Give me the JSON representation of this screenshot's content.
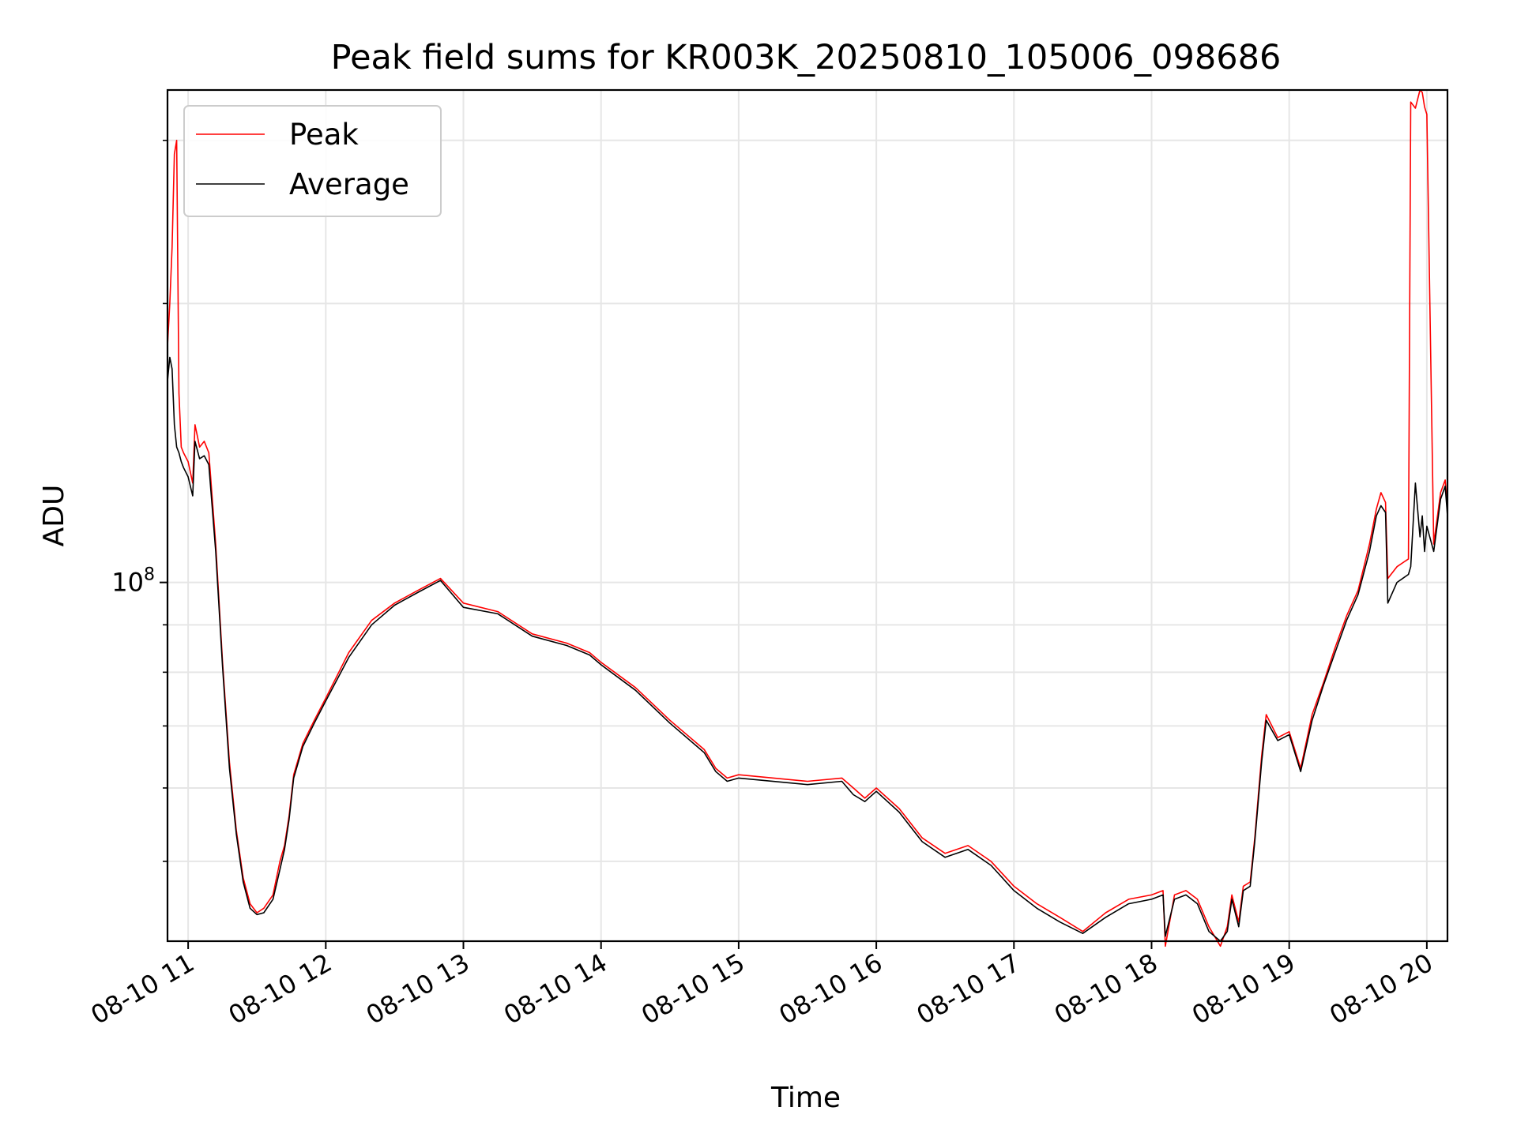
{
  "chart_data": {
    "type": "line",
    "title": "Peak field sums for KR003K_20250810_105006_098686",
    "xlabel": "Time",
    "ylabel": "ADU",
    "y_scale": "log",
    "x_tick_labels": [
      "08-10 11",
      "08-10 12",
      "08-10 13",
      "08-10 14",
      "08-10 15",
      "08-10 16",
      "08-10 17",
      "08-10 18",
      "08-10 19",
      "08-10 20"
    ],
    "y_tick_labels": [
      {
        "base": "10",
        "exponent": "8",
        "value": 100000000
      }
    ],
    "xlim": [
      "2025-08-10 10:51",
      "2025-08-10 20:09"
    ],
    "ylim": [
      41000000,
      340000000
    ],
    "grid": true,
    "legend_position": "upper-left",
    "series": [
      {
        "name": "Peak",
        "color": "#ff0000",
        "x": [
          "2025-08-10 10:51",
          "2025-08-10 10:52",
          "2025-08-10 10:53",
          "2025-08-10 10:54",
          "2025-08-10 10:55",
          "2025-08-10 10:56",
          "2025-08-10 10:57",
          "2025-08-10 10:58",
          "2025-08-10 11:00",
          "2025-08-10 11:02",
          "2025-08-10 11:03",
          "2025-08-10 11:04",
          "2025-08-10 11:05",
          "2025-08-10 11:07",
          "2025-08-10 11:09",
          "2025-08-10 11:12",
          "2025-08-10 11:15",
          "2025-08-10 11:18",
          "2025-08-10 11:21",
          "2025-08-10 11:24",
          "2025-08-10 11:27",
          "2025-08-10 11:30",
          "2025-08-10 11:33",
          "2025-08-10 11:37",
          "2025-08-10 11:40",
          "2025-08-10 11:42",
          "2025-08-10 11:44",
          "2025-08-10 11:46",
          "2025-08-10 11:50",
          "2025-08-10 11:55",
          "2025-08-10 12:00",
          "2025-08-10 12:10",
          "2025-08-10 12:20",
          "2025-08-10 12:30",
          "2025-08-10 12:40",
          "2025-08-10 12:50",
          "2025-08-10 13:00",
          "2025-08-10 13:15",
          "2025-08-10 13:30",
          "2025-08-10 13:45",
          "2025-08-10 13:55",
          "2025-08-10 14:00",
          "2025-08-10 14:15",
          "2025-08-10 14:30",
          "2025-08-10 14:45",
          "2025-08-10 14:50",
          "2025-08-10 14:55",
          "2025-08-10 15:00",
          "2025-08-10 15:30",
          "2025-08-10 15:45",
          "2025-08-10 15:50",
          "2025-08-10 15:55",
          "2025-08-10 16:00",
          "2025-08-10 16:10",
          "2025-08-10 16:20",
          "2025-08-10 16:30",
          "2025-08-10 16:40",
          "2025-08-10 16:50",
          "2025-08-10 17:00",
          "2025-08-10 17:10",
          "2025-08-10 17:20",
          "2025-08-10 17:30",
          "2025-08-10 17:40",
          "2025-08-10 17:50",
          "2025-08-10 18:00",
          "2025-08-10 18:05",
          "2025-08-10 18:06",
          "2025-08-10 18:10",
          "2025-08-10 18:15",
          "2025-08-10 18:20",
          "2025-08-10 18:25",
          "2025-08-10 18:30",
          "2025-08-10 18:33",
          "2025-08-10 18:35",
          "2025-08-10 18:38",
          "2025-08-10 18:40",
          "2025-08-10 18:43",
          "2025-08-10 18:45",
          "2025-08-10 18:48",
          "2025-08-10 18:50",
          "2025-08-10 18:55",
          "2025-08-10 19:00",
          "2025-08-10 19:05",
          "2025-08-10 19:10",
          "2025-08-10 19:15",
          "2025-08-10 19:20",
          "2025-08-10 19:25",
          "2025-08-10 19:30",
          "2025-08-10 19:35",
          "2025-08-10 19:38",
          "2025-08-10 19:40",
          "2025-08-10 19:42",
          "2025-08-10 19:43",
          "2025-08-10 19:47",
          "2025-08-10 19:52",
          "2025-08-10 19:53",
          "2025-08-10 19:55",
          "2025-08-10 19:57",
          "2025-08-10 19:58",
          "2025-08-10 19:59",
          "2025-08-10 20:00",
          "2025-08-10 20:03",
          "2025-08-10 20:06",
          "2025-08-10 20:08",
          "2025-08-10 20:09"
        ],
        "values": [
          180000000,
          200000000,
          230000000,
          290000000,
          300000000,
          160000000,
          140000000,
          138000000,
          135000000,
          128000000,
          148000000,
          144000000,
          140000000,
          142000000,
          138000000,
          110000000,
          82000000,
          64000000,
          54000000,
          48000000,
          45000000,
          44000000,
          44500000,
          46000000,
          50000000,
          52000000,
          56000000,
          62000000,
          67000000,
          71000000,
          75000000,
          84000000,
          91000000,
          95000000,
          98000000,
          101000000,
          95000000,
          93000000,
          88000000,
          86000000,
          84000000,
          82000000,
          77000000,
          71000000,
          66000000,
          63000000,
          61500000,
          62000000,
          61000000,
          61500000,
          60000000,
          58500000,
          60000000,
          57000000,
          53000000,
          51000000,
          52000000,
          50000000,
          47000000,
          45000000,
          43500000,
          42000000,
          44000000,
          45500000,
          46000000,
          46500000,
          40500000,
          46000000,
          46500000,
          45500000,
          42500000,
          40500000,
          42500000,
          46000000,
          43000000,
          47000000,
          47500000,
          53000000,
          65000000,
          72000000,
          68000000,
          69000000,
          63000000,
          72000000,
          78000000,
          85000000,
          92000000,
          98000000,
          110000000,
          120000000,
          125000000,
          122000000,
          101000000,
          104000000,
          106000000,
          330000000,
          325000000,
          340000000,
          338000000,
          326000000,
          320000000,
          110000000,
          125000000,
          129000000,
          120000000
        ]
      },
      {
        "name": "Average",
        "color": "#000000",
        "x": [
          "2025-08-10 10:51",
          "2025-08-10 10:52",
          "2025-08-10 10:53",
          "2025-08-10 10:54",
          "2025-08-10 10:55",
          "2025-08-10 10:56",
          "2025-08-10 10:57",
          "2025-08-10 10:58",
          "2025-08-10 11:00",
          "2025-08-10 11:02",
          "2025-08-10 11:03",
          "2025-08-10 11:04",
          "2025-08-10 11:05",
          "2025-08-10 11:07",
          "2025-08-10 11:09",
          "2025-08-10 11:12",
          "2025-08-10 11:15",
          "2025-08-10 11:18",
          "2025-08-10 11:21",
          "2025-08-10 11:24",
          "2025-08-10 11:27",
          "2025-08-10 11:30",
          "2025-08-10 11:33",
          "2025-08-10 11:37",
          "2025-08-10 11:40",
          "2025-08-10 11:42",
          "2025-08-10 11:44",
          "2025-08-10 11:46",
          "2025-08-10 11:50",
          "2025-08-10 11:55",
          "2025-08-10 12:00",
          "2025-08-10 12:10",
          "2025-08-10 12:20",
          "2025-08-10 12:30",
          "2025-08-10 12:40",
          "2025-08-10 12:50",
          "2025-08-10 13:00",
          "2025-08-10 13:15",
          "2025-08-10 13:30",
          "2025-08-10 13:45",
          "2025-08-10 13:55",
          "2025-08-10 14:00",
          "2025-08-10 14:15",
          "2025-08-10 14:30",
          "2025-08-10 14:45",
          "2025-08-10 14:50",
          "2025-08-10 14:55",
          "2025-08-10 15:00",
          "2025-08-10 15:30",
          "2025-08-10 15:45",
          "2025-08-10 15:50",
          "2025-08-10 15:55",
          "2025-08-10 16:00",
          "2025-08-10 16:10",
          "2025-08-10 16:20",
          "2025-08-10 16:30",
          "2025-08-10 16:40",
          "2025-08-10 16:50",
          "2025-08-10 17:00",
          "2025-08-10 17:10",
          "2025-08-10 17:20",
          "2025-08-10 17:30",
          "2025-08-10 17:40",
          "2025-08-10 17:50",
          "2025-08-10 18:00",
          "2025-08-10 18:05",
          "2025-08-10 18:06",
          "2025-08-10 18:10",
          "2025-08-10 18:15",
          "2025-08-10 18:20",
          "2025-08-10 18:25",
          "2025-08-10 18:30",
          "2025-08-10 18:33",
          "2025-08-10 18:35",
          "2025-08-10 18:38",
          "2025-08-10 18:40",
          "2025-08-10 18:43",
          "2025-08-10 18:45",
          "2025-08-10 18:48",
          "2025-08-10 18:50",
          "2025-08-10 18:55",
          "2025-08-10 19:00",
          "2025-08-10 19:05",
          "2025-08-10 19:10",
          "2025-08-10 19:15",
          "2025-08-10 19:20",
          "2025-08-10 19:25",
          "2025-08-10 19:30",
          "2025-08-10 19:35",
          "2025-08-10 19:38",
          "2025-08-10 19:40",
          "2025-08-10 19:42",
          "2025-08-10 19:43",
          "2025-08-10 19:47",
          "2025-08-10 19:52",
          "2025-08-10 19:53",
          "2025-08-10 19:55",
          "2025-08-10 19:57",
          "2025-08-10 19:58",
          "2025-08-10 19:59",
          "2025-08-10 20:00",
          "2025-08-10 20:03",
          "2025-08-10 20:06",
          "2025-08-10 20:08",
          "2025-08-10 20:09"
        ],
        "values": [
          165000000,
          175000000,
          170000000,
          148000000,
          140000000,
          138000000,
          135000000,
          133000000,
          130000000,
          124000000,
          142000000,
          139000000,
          136000000,
          137000000,
          134000000,
          108000000,
          81000000,
          63000000,
          53500000,
          47500000,
          44500000,
          43800000,
          44000000,
          45500000,
          49000000,
          51500000,
          55500000,
          61500000,
          66500000,
          70500000,
          74500000,
          83000000,
          90000000,
          94500000,
          97500000,
          100500000,
          94000000,
          92500000,
          87500000,
          85500000,
          83500000,
          81500000,
          76500000,
          70500000,
          65500000,
          62500000,
          61000000,
          61500000,
          60500000,
          61000000,
          59000000,
          58000000,
          59500000,
          56500000,
          52500000,
          50500000,
          51500000,
          49500000,
          46500000,
          44500000,
          43000000,
          41800000,
          43500000,
          45000000,
          45500000,
          46000000,
          41500000,
          45500000,
          46000000,
          45000000,
          42000000,
          41000000,
          42000000,
          45500000,
          42500000,
          46500000,
          47000000,
          52500000,
          64000000,
          71000000,
          67500000,
          68500000,
          62500000,
          71000000,
          77500000,
          84000000,
          91000000,
          97000000,
          108000000,
          118000000,
          121000000,
          119000000,
          95000000,
          100000000,
          102000000,
          104000000,
          128000000,
          112000000,
          118000000,
          108000000,
          115000000,
          108000000,
          123000000,
          127000000,
          118000000
        ]
      }
    ]
  }
}
